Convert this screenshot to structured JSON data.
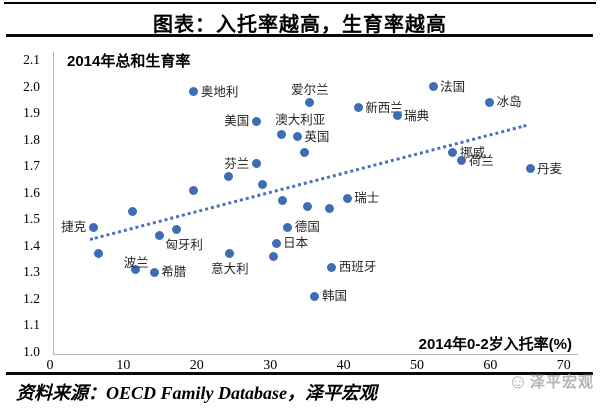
{
  "page": {
    "title": "图表：入托率越高，生育率越高",
    "source": "资料来源：OECD Family Database，泽平宏观",
    "watermark": "泽平宏观"
  },
  "chart_data": {
    "type": "scatter",
    "title": "2014年总和生育率",
    "xlabel": "2014年0-2岁入托率(%)",
    "ylabel": "2014年总和生育率",
    "xlim": [
      0,
      70
    ],
    "ylim": [
      1.0,
      2.1
    ],
    "x_ticks": [
      "0",
      "10",
      "20",
      "30",
      "40",
      "50",
      "60",
      "70"
    ],
    "y_ticks": [
      "2.1",
      "2.0",
      "1.9",
      "1.8",
      "1.7",
      "1.6",
      "1.5",
      "1.4",
      "1.3",
      "1.2",
      "1.1",
      "1.0"
    ],
    "point_color": "#3E6DB5",
    "trend_color": "#4673C0",
    "grid": false,
    "legend": "none",
    "trend_line": {
      "style": "dotted",
      "x_start": 5.5,
      "y_start": 1.43,
      "x_end": 65.0,
      "y_end": 1.86
    },
    "points": [
      {
        "label": "捷克",
        "x": 5.9,
        "y": 1.47,
        "pos": "left"
      },
      {
        "label": "波兰",
        "x": 11.6,
        "y": 1.31,
        "pos": "above-tight"
      },
      {
        "label": "希腊",
        "x": 14.2,
        "y": 1.3,
        "pos": "right"
      },
      {
        "label": "匈牙利",
        "x": 14.9,
        "y": 1.44,
        "pos": "below-right"
      },
      {
        "label": "奥地利",
        "x": 19.6,
        "y": 1.98,
        "pos": "right"
      },
      {
        "label": "意大利",
        "x": 24.5,
        "y": 1.37,
        "pos": "below"
      },
      {
        "label": "美国",
        "x": 28.1,
        "y": 1.87,
        "pos": "left"
      },
      {
        "label": "芬兰",
        "x": 28.1,
        "y": 1.71,
        "pos": "left"
      },
      {
        "label": "日本",
        "x": 30.8,
        "y": 1.41,
        "pos": "right"
      },
      {
        "label": "澳大利亚",
        "x": 31.5,
        "y": 1.82,
        "pos": "above-start"
      },
      {
        "label": "德国",
        "x": 32.4,
        "y": 1.47,
        "pos": "right"
      },
      {
        "label": "英国",
        "x": 33.7,
        "y": 1.81,
        "pos": "right"
      },
      {
        "label": "爱尔兰",
        "x": 35.4,
        "y": 1.94,
        "pos": "above"
      },
      {
        "label": "韩国",
        "x": 36.1,
        "y": 1.21,
        "pos": "right"
      },
      {
        "label": "西班牙",
        "x": 38.4,
        "y": 1.32,
        "pos": "right"
      },
      {
        "label": "瑞士",
        "x": 40.5,
        "y": 1.58,
        "pos": "right"
      },
      {
        "label": "新西兰",
        "x": 42.0,
        "y": 1.92,
        "pos": "right"
      },
      {
        "label": "瑞典",
        "x": 47.3,
        "y": 1.89,
        "pos": "right"
      },
      {
        "label": "法国",
        "x": 52.2,
        "y": 2.0,
        "pos": "right"
      },
      {
        "label": "挪威",
        "x": 54.9,
        "y": 1.75,
        "pos": "right"
      },
      {
        "label": "荷兰",
        "x": 56.1,
        "y": 1.72,
        "pos": "right"
      },
      {
        "label": "冰岛",
        "x": 59.9,
        "y": 1.94,
        "pos": "right"
      },
      {
        "label": "丹麦",
        "x": 65.4,
        "y": 1.69,
        "pos": "right"
      },
      {
        "label": "",
        "x": 6.6,
        "y": 1.37,
        "pos": "none"
      },
      {
        "label": "",
        "x": 11.3,
        "y": 1.53,
        "pos": "none"
      },
      {
        "label": "",
        "x": 17.3,
        "y": 1.46,
        "pos": "none"
      },
      {
        "label": "",
        "x": 19.5,
        "y": 1.61,
        "pos": "none"
      },
      {
        "label": "",
        "x": 24.3,
        "y": 1.66,
        "pos": "none"
      },
      {
        "label": "",
        "x": 29.0,
        "y": 1.63,
        "pos": "none"
      },
      {
        "label": "",
        "x": 30.4,
        "y": 1.36,
        "pos": "none"
      },
      {
        "label": "",
        "x": 31.7,
        "y": 1.57,
        "pos": "none"
      },
      {
        "label": "",
        "x": 34.7,
        "y": 1.75,
        "pos": "none"
      },
      {
        "label": "",
        "x": 35.1,
        "y": 1.55,
        "pos": "none"
      },
      {
        "label": "",
        "x": 38.1,
        "y": 1.54,
        "pos": "none"
      }
    ]
  }
}
